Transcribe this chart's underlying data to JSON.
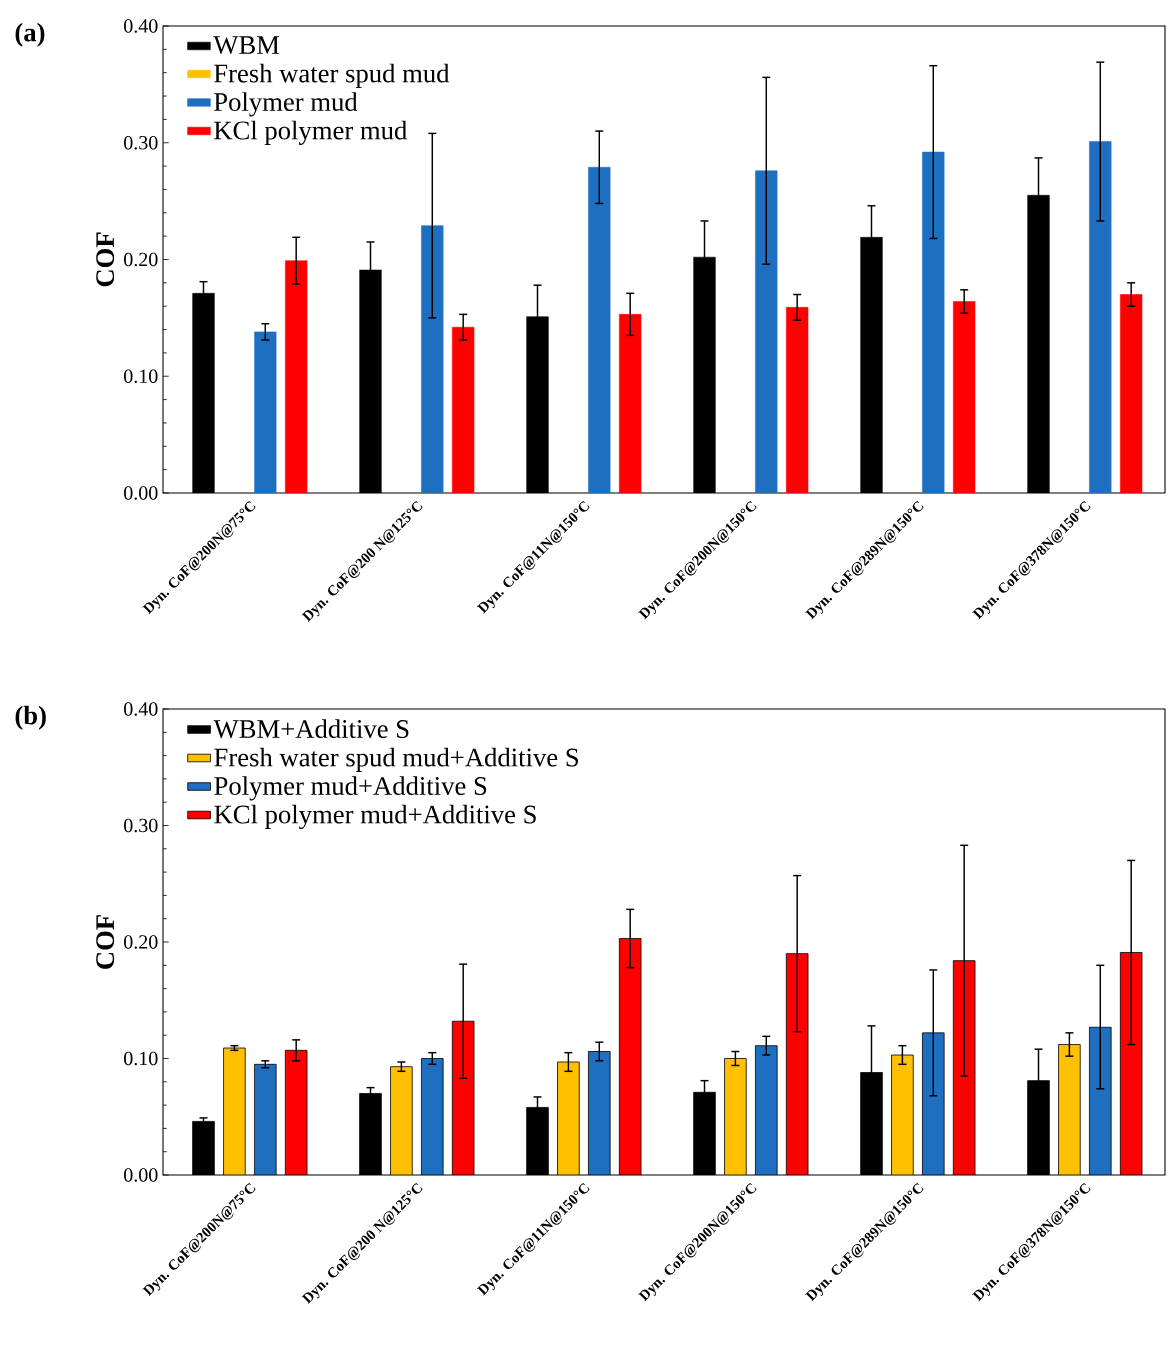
{
  "chart_data": [
    {
      "type": "bar",
      "title": "(a)",
      "ylabel": "COF",
      "categories": [
        "Dyn. CoF@200N@75°C",
        "Dyn. CoF@200 N@125°C",
        "Dyn. CoF@11N@150°C",
        "Dyn. CoF@200N@150°C",
        "Dyn. CoF@289N@150°C",
        "Dyn. CoF@378N@150°C"
      ],
      "series": [
        {
          "name": "WBM",
          "color": "#000000",
          "values": [
            0.171,
            0.191,
            0.151,
            0.202,
            0.219,
            0.255
          ],
          "errors": [
            0.01,
            0.024,
            0.027,
            0.031,
            0.027,
            0.032
          ]
        },
        {
          "name": "Fresh water spud mud",
          "color": "#ffc000",
          "values": [
            null,
            null,
            null,
            null,
            null,
            null
          ]
        },
        {
          "name": "Polymer mud",
          "color": "#1f6fc0",
          "values": [
            0.138,
            0.229,
            0.279,
            0.276,
            0.292,
            0.301
          ],
          "errors": [
            0.007,
            0.079,
            0.031,
            0.08,
            0.074,
            0.068
          ]
        },
        {
          "name": "KCl polymer mud",
          "color": "#ff0000",
          "values": [
            0.199,
            0.142,
            0.153,
            0.159,
            0.164,
            0.17
          ],
          "errors": [
            0.02,
            0.011,
            0.018,
            0.011,
            0.01,
            0.01
          ]
        }
      ],
      "ylim": [
        0,
        0.4
      ],
      "yticks": [
        {
          "value": 0,
          "label": "0.00"
        },
        {
          "value": 0.1,
          "label": "0.10"
        },
        {
          "value": 0.2,
          "label": "0.20"
        },
        {
          "value": 0.3,
          "label": "0.30"
        },
        {
          "value": 0.4,
          "label": "0.40"
        }
      ],
      "legend": "top left"
    },
    {
      "type": "bar",
      "title": "(b)",
      "ylabel": "COF",
      "categories": [
        "Dyn. CoF@200N@75°C",
        "Dyn. CoF@200 N@125°C",
        "Dyn. CoF@11N@150°C",
        "Dyn. CoF@200N@150°C",
        "Dyn. CoF@289N@150°C",
        "Dyn. CoF@378N@150°C"
      ],
      "series": [
        {
          "name": "WBM+Additive S",
          "color": "#000000",
          "values": [
            0.046,
            0.07,
            0.058,
            0.071,
            0.088,
            0.081
          ],
          "errors": [
            0.003,
            0.005,
            0.009,
            0.01,
            0.04,
            0.027
          ]
        },
        {
          "name": "Fresh water spud mud+Additive S",
          "color": "#ffc000",
          "values": [
            0.109,
            0.093,
            0.097,
            0.1,
            0.103,
            0.112
          ],
          "errors": [
            0.002,
            0.004,
            0.008,
            0.006,
            0.008,
            0.01
          ]
        },
        {
          "name": "Polymer mud+Additive S",
          "color": "#1f6fc0",
          "values": [
            0.095,
            0.1,
            0.106,
            0.111,
            0.122,
            0.127
          ],
          "errors": [
            0.003,
            0.005,
            0.008,
            0.008,
            0.054,
            0.053
          ]
        },
        {
          "name": "KCl polymer mud+Additive S",
          "color": "#ff0000",
          "values": [
            0.107,
            0.132,
            0.203,
            0.19,
            0.184,
            0.191
          ],
          "errors": [
            0.009,
            0.049,
            0.025,
            0.067,
            0.099,
            0.079
          ]
        }
      ],
      "ylim": [
        0,
        0.4
      ],
      "yticks": [
        {
          "value": 0,
          "label": "0.00"
        },
        {
          "value": 0.1,
          "label": "0.10"
        },
        {
          "value": 0.2,
          "label": "0.20"
        },
        {
          "value": 0.3,
          "label": "0.30"
        },
        {
          "value": 0.4,
          "label": "0.40"
        }
      ],
      "legend": "top left"
    }
  ]
}
